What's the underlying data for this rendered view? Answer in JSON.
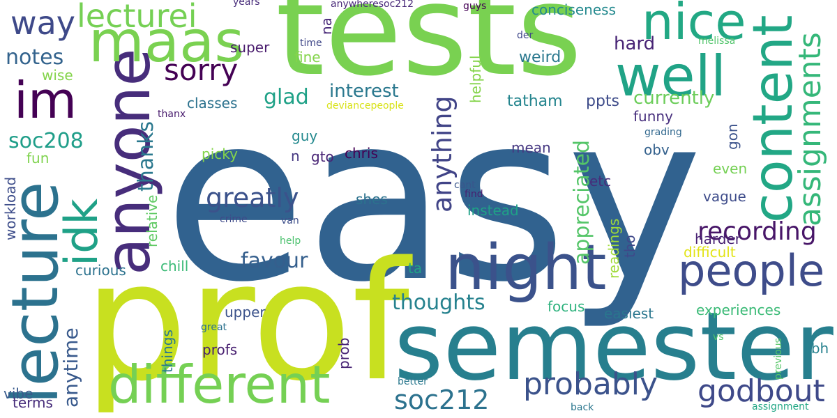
{
  "words": [
    {
      "text": "easy",
      "color": "#31628f"
    },
    {
      "text": "tests",
      "color": "#79d151"
    },
    {
      "text": "prof",
      "color": "#c8e020"
    },
    {
      "text": "semester",
      "color": "#277f8e"
    },
    {
      "text": "night",
      "color": "#3b528b"
    },
    {
      "text": "lecture",
      "color": "#2c728e"
    },
    {
      "text": "anyone",
      "color": "#472d7b"
    },
    {
      "text": "different",
      "color": "#75d054"
    },
    {
      "text": "maas",
      "color": "#7ad151"
    },
    {
      "text": "well",
      "color": "#20a386"
    },
    {
      "text": "content",
      "color": "#22a785"
    },
    {
      "text": "people",
      "color": "#3e4c8a"
    },
    {
      "text": "nice",
      "color": "#22a884"
    },
    {
      "text": "im",
      "color": "#440154"
    },
    {
      "text": "idk",
      "color": "#1fa187"
    },
    {
      "text": "godbout",
      "color": "#3e4989"
    },
    {
      "text": "probably",
      "color": "#3b528b"
    },
    {
      "text": "sorry",
      "color": "#440154"
    },
    {
      "text": "assignments",
      "color": "#35b779"
    },
    {
      "text": "anything",
      "color": "#414487"
    },
    {
      "text": "recording",
      "color": "#481668"
    },
    {
      "text": "way",
      "color": "#3e4989"
    },
    {
      "text": "lecturei",
      "color": "#75d054"
    },
    {
      "text": "soc212",
      "color": "#2c728e"
    },
    {
      "text": "greatly",
      "color": "#3b528b"
    },
    {
      "text": "thanks",
      "color": "#2a788e"
    },
    {
      "text": "appreciated",
      "color": "#54c568"
    },
    {
      "text": "thoughts",
      "color": "#26828e"
    },
    {
      "text": "favour",
      "color": "#355f8d"
    },
    {
      "text": "notes",
      "color": "#33638d"
    },
    {
      "text": "glad",
      "color": "#1fa187"
    },
    {
      "text": "soc208",
      "color": "#1f9e89"
    },
    {
      "text": "anytime",
      "color": "#38598c"
    },
    {
      "text": "currently",
      "color": "#6ccd5a"
    },
    {
      "text": "interest",
      "color": "#2a788e"
    },
    {
      "text": "hard",
      "color": "#482475"
    },
    {
      "text": "tatham",
      "color": "#25858e"
    },
    {
      "text": "ppts",
      "color": "#3e4c8a"
    },
    {
      "text": "weird",
      "color": "#2a788e"
    },
    {
      "text": "classes",
      "color": "#2c728e"
    },
    {
      "text": "funny",
      "color": "#472f7d"
    },
    {
      "text": "super",
      "color": "#481a6c"
    },
    {
      "text": "fine",
      "color": "#84d44b"
    },
    {
      "text": "helpful",
      "color": "#84d44b"
    },
    {
      "text": "conciseness",
      "color": "#23898e"
    },
    {
      "text": "upper",
      "color": "#3b528b"
    },
    {
      "text": "easiest",
      "color": "#2a768e"
    },
    {
      "text": "experiences",
      "color": "#3aba76"
    },
    {
      "text": "focus",
      "color": "#2db27d"
    },
    {
      "text": "chill",
      "color": "#3aba76"
    },
    {
      "text": "curious",
      "color": "#2c728e"
    },
    {
      "text": "difficult",
      "color": "#e2e418"
    },
    {
      "text": "harder",
      "color": "#482173"
    },
    {
      "text": "tho",
      "color": "#3f4889"
    },
    {
      "text": "readings",
      "color": "#a0da39"
    },
    {
      "text": "vague",
      "color": "#3e4c8a"
    },
    {
      "text": "even",
      "color": "#75d054"
    },
    {
      "text": "instead",
      "color": "#1fa187"
    },
    {
      "text": "shes",
      "color": "#2c728e"
    },
    {
      "text": "chris",
      "color": "#440154"
    },
    {
      "text": "guy",
      "color": "#23898e"
    },
    {
      "text": "mean",
      "color": "#453781"
    },
    {
      "text": "obv",
      "color": "#34618d"
    },
    {
      "text": "picky",
      "color": "#84d44b"
    },
    {
      "text": "etc",
      "color": "#472c7a"
    },
    {
      "text": "gon",
      "color": "#3b528b"
    },
    {
      "text": "prob",
      "color": "#482475"
    },
    {
      "text": "things",
      "color": "#2a788e"
    },
    {
      "text": "profs",
      "color": "#482071"
    },
    {
      "text": "tbh",
      "color": "#26818e"
    },
    {
      "text": "vibe",
      "color": "#38598c"
    },
    {
      "text": "terms",
      "color": "#472d7b"
    },
    {
      "text": "fun",
      "color": "#7fd34e"
    },
    {
      "text": "workload",
      "color": "#3d4d8a"
    },
    {
      "text": "relative",
      "color": "#5ec962"
    },
    {
      "text": "wise",
      "color": "#84d44b"
    },
    {
      "text": "gto",
      "color": "#482475"
    },
    {
      "text": "n",
      "color": "#453781"
    },
    {
      "text": "na",
      "color": "#482878"
    },
    {
      "text": "ta",
      "color": "#20a386"
    },
    {
      "text": "crime",
      "color": "#3e4989"
    },
    {
      "text": "van",
      "color": "#3d4e8a"
    },
    {
      "text": "help",
      "color": "#4ac16d"
    },
    {
      "text": "cant",
      "color": "#39558c"
    },
    {
      "text": "find",
      "color": "#481f70"
    },
    {
      "text": "der",
      "color": "#3f4788"
    },
    {
      "text": "melissa",
      "color": "#50c46a"
    },
    {
      "text": "time",
      "color": "#3f4788"
    },
    {
      "text": "years",
      "color": "#472c7a"
    },
    {
      "text": "anywheresoc212",
      "color": "#482878"
    },
    {
      "text": "guys",
      "color": "#440154"
    },
    {
      "text": "thanx",
      "color": "#481b6d"
    },
    {
      "text": "deviancepeople",
      "color": "#d8e219"
    },
    {
      "text": "grading",
      "color": "#31688e"
    },
    {
      "text": "great",
      "color": "#2c728e"
    },
    {
      "text": "vs",
      "color": "#50c46a"
    },
    {
      "text": "previous",
      "color": "#56c667"
    },
    {
      "text": "better",
      "color": "#2a788e"
    },
    {
      "text": "back",
      "color": "#2a768e"
    },
    {
      "text": "assignment",
      "color": "#22a785"
    }
  ]
}
